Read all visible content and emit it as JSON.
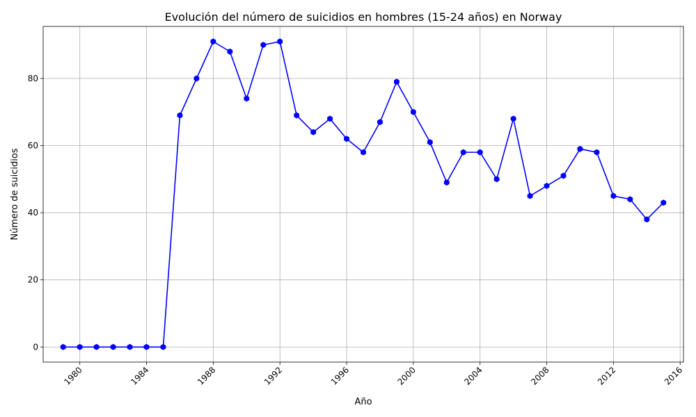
{
  "chart_data": {
    "type": "line",
    "title": "Evolución del número de suicidios en hombres (15-24 años) en Norway",
    "xlabel": "Año",
    "ylabel": "Número de suicidios",
    "xlim": [
      1977.8,
      2016.2
    ],
    "ylim": [
      -4.5,
      95.5
    ],
    "x_ticks": [
      1980,
      1984,
      1988,
      1992,
      1996,
      2000,
      2004,
      2008,
      2012,
      2016
    ],
    "y_ticks": [
      0,
      20,
      40,
      60,
      80
    ],
    "grid": true,
    "series": [
      {
        "color": "#0000ff",
        "marker": "hexagon",
        "x": [
          1979,
          1980,
          1981,
          1982,
          1983,
          1984,
          1985,
          1986,
          1987,
          1988,
          1989,
          1990,
          1991,
          1992,
          1993,
          1994,
          1995,
          1996,
          1997,
          1998,
          1999,
          2000,
          2001,
          2002,
          2003,
          2004,
          2005,
          2006,
          2007,
          2008,
          2009,
          2010,
          2011,
          2012,
          2013,
          2014,
          2015
        ],
        "values": [
          0,
          0,
          0,
          0,
          0,
          0,
          0,
          69,
          80,
          91,
          88,
          74,
          90,
          91,
          69,
          64,
          68,
          62,
          58,
          67,
          79,
          70,
          61,
          49,
          58,
          58,
          50,
          68,
          45,
          48,
          51,
          59,
          58,
          45,
          44,
          38,
          43
        ]
      }
    ]
  }
}
